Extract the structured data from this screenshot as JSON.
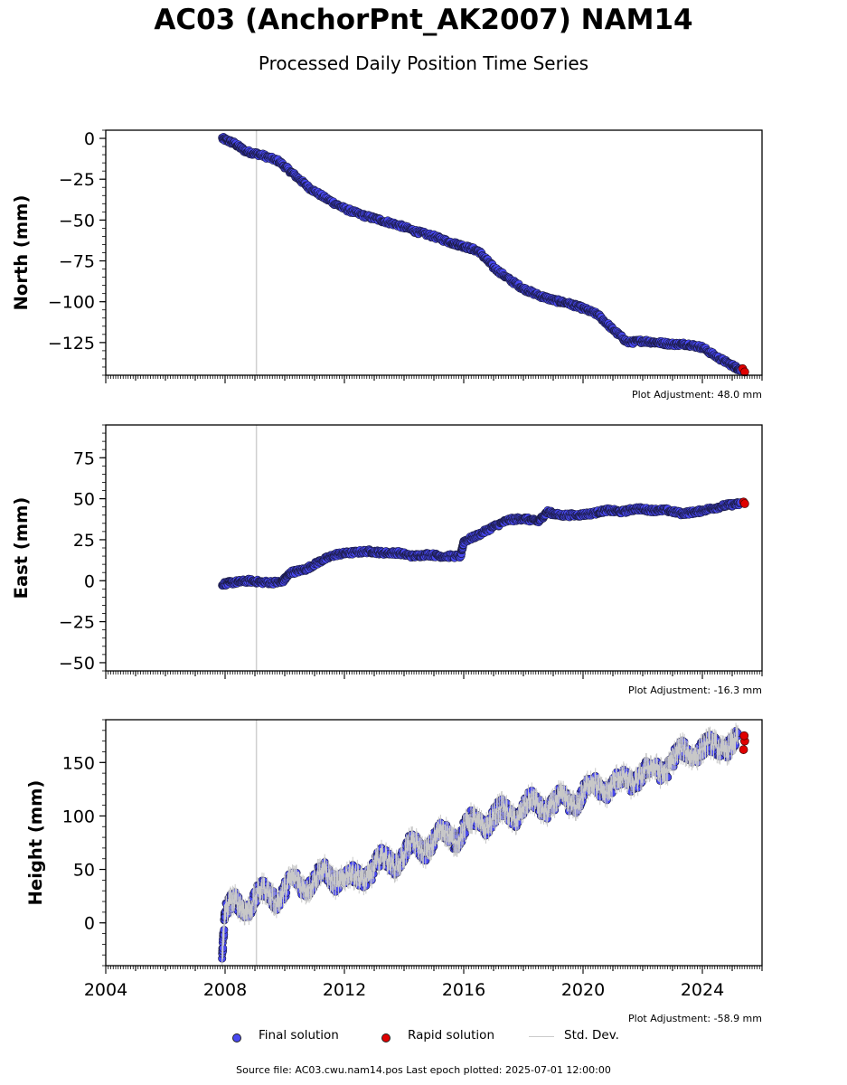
{
  "header": {
    "title": "AC03 (AnchorPnt_AK2007) NAM14",
    "subtitle": "Processed Daily Position Time Series"
  },
  "legend": {
    "final_label": "Final solution",
    "rapid_label": "Rapid solution",
    "std_label": "Std. Dev.",
    "final_color": "#4848f0",
    "rapid_color": "#e00000",
    "std_color": "#cccccc"
  },
  "footer": {
    "text": "Source file: AC03.cwu.nam14.pos  Last epoch plotted: 2025-07-01 12:00:00"
  },
  "chart_data": [
    {
      "type": "scatter",
      "ylabel": "North (mm)",
      "adjustment": "Plot Adjustment: 48.0 mm",
      "xlim": [
        2004,
        2026
      ],
      "ylim": [
        -145,
        5
      ],
      "yticks": [
        0,
        -25,
        -50,
        -75,
        -100,
        -125
      ],
      "yticklabels": [
        "0",
        "−25",
        "−50",
        "−75",
        "−100",
        "−125"
      ],
      "marker_year": 2009.05,
      "final_series": {
        "name": "Final solution",
        "x": [
          2007.9,
          2008.3,
          2008.7,
          2009.2,
          2009.8,
          2010.3,
          2010.8,
          2011.4,
          2012.0,
          2012.6,
          2013.2,
          2013.8,
          2014.4,
          2015.0,
          2015.6,
          2016.0,
          2016.5,
          2017.0,
          2017.5,
          2018.0,
          2018.5,
          2019.0,
          2019.5,
          2020.0,
          2020.5,
          2021.0,
          2021.5,
          2022.0,
          2022.5,
          2023.0,
          2023.5,
          2024.0,
          2024.5,
          2025.0,
          2025.3
        ],
        "y": [
          0,
          -3,
          -8,
          -10,
          -14,
          -22,
          -30,
          -37,
          -43,
          -47,
          -50,
          -53,
          -57,
          -60,
          -64,
          -66,
          -69,
          -79,
          -86,
          -92,
          -96,
          -99,
          -101,
          -104,
          -108,
          -117,
          -125,
          -124,
          -125,
          -126,
          -126,
          -128,
          -134,
          -139,
          -142
        ]
      },
      "rapid_series": {
        "name": "Rapid solution",
        "x": [
          2025.35,
          2025.42
        ],
        "y": [
          -141,
          -143
        ]
      }
    },
    {
      "type": "scatter",
      "ylabel": "East (mm)",
      "adjustment": "Plot Adjustment: -16.3 mm",
      "xlim": [
        2004,
        2026
      ],
      "ylim": [
        -55,
        95
      ],
      "yticks": [
        75,
        50,
        25,
        0,
        -25,
        -50
      ],
      "yticklabels": [
        "75",
        "50",
        "25",
        "0",
        "−25",
        "−50"
      ],
      "marker_year": 2009.05,
      "final_series": {
        "name": "Final solution",
        "x": [
          2007.9,
          2008.3,
          2008.8,
          2009.3,
          2009.9,
          2010.2,
          2010.7,
          2011.2,
          2011.7,
          2012.2,
          2012.8,
          2013.3,
          2013.8,
          2014.3,
          2014.8,
          2015.3,
          2015.9,
          2016.0,
          2016.5,
          2017.0,
          2017.5,
          2018.0,
          2018.5,
          2018.8,
          2019.2,
          2019.8,
          2020.3,
          2020.8,
          2021.3,
          2021.8,
          2022.3,
          2022.8,
          2023.3,
          2023.8,
          2024.3,
          2024.8,
          2025.3
        ],
        "y": [
          -2,
          -1,
          0,
          -1,
          -1,
          5,
          7,
          12,
          16,
          17,
          18,
          17,
          17,
          15,
          16,
          15,
          15,
          24,
          28,
          33,
          37,
          38,
          36,
          42,
          40,
          40,
          41,
          43,
          42,
          44,
          43,
          43,
          41,
          42,
          44,
          46,
          47
        ]
      },
      "rapid_series": {
        "name": "Rapid solution",
        "x": [
          2025.38,
          2025.42
        ],
        "y": [
          48,
          47
        ]
      }
    },
    {
      "type": "scatter",
      "ylabel": "Height (mm)",
      "adjustment": "Plot Adjustment: -58.9 mm",
      "xlim": [
        2004,
        2026
      ],
      "ylim": [
        -40,
        190
      ],
      "yticks": [
        150,
        100,
        50,
        0
      ],
      "yticklabels": [
        "150",
        "100",
        "50",
        "0"
      ],
      "xticks": [
        2004,
        2008,
        2012,
        2016,
        2020,
        2024
      ],
      "xticklabels": [
        "2004",
        "2008",
        "2012",
        "2016",
        "2020",
        "2024"
      ],
      "marker_year": 2009.05,
      "final_series": {
        "name": "Final solution",
        "x": [
          2007.9,
          2008.0,
          2008.4,
          2008.8,
          2009.3,
          2009.8,
          2010.3,
          2010.8,
          2011.3,
          2011.8,
          2012.3,
          2012.8,
          2013.3,
          2013.8,
          2014.3,
          2014.8,
          2015.3,
          2015.8,
          2016.3,
          2016.8,
          2017.3,
          2017.8,
          2018.3,
          2018.8,
          2019.3,
          2019.8,
          2020.3,
          2020.8,
          2021.3,
          2021.8,
          2022.3,
          2022.8,
          2023.3,
          2023.8,
          2024.3,
          2024.8,
          2025.2
        ],
        "y": [
          -25,
          10,
          15,
          20,
          25,
          28,
          35,
          40,
          42,
          45,
          38,
          50,
          55,
          62,
          68,
          75,
          80,
          85,
          90,
          98,
          100,
          105,
          108,
          112,
          110,
          118,
          125,
          130,
          128,
          140,
          138,
          150,
          155,
          165,
          160,
          170,
          165
        ]
      },
      "rapid_series": {
        "name": "Rapid solution",
        "x": [
          2025.38,
          2025.42,
          2025.4
        ],
        "y": [
          162,
          170,
          175
        ]
      }
    }
  ]
}
